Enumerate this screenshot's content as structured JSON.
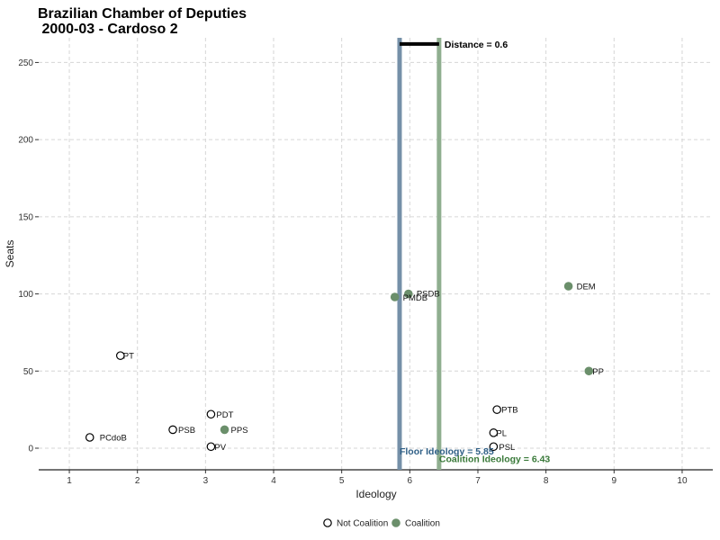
{
  "chart_data": {
    "type": "scatter",
    "title_line1": "Brazilian Chamber of Deputies",
    "title_line2": " 2000-03 - Cardoso 2",
    "xlabel": "Ideology",
    "ylabel": "Seats",
    "xlim": [
      0.55,
      10.45
    ],
    "ylim": [
      -14,
      266
    ],
    "xticks": [
      1,
      2,
      3,
      4,
      5,
      6,
      7,
      8,
      9,
      10
    ],
    "yticks": [
      0,
      50,
      100,
      150,
      200,
      250
    ],
    "grid": true,
    "colors": {
      "coalition": "#6b8f6b",
      "floor_line": "#7590a8",
      "coalition_line": "#8fae8f",
      "floor_text": "#2e5f86",
      "coalition_text": "#3a7a3a"
    },
    "points": [
      {
        "party": "PT",
        "x": 1.75,
        "y": 60,
        "coalition": false
      },
      {
        "party": "PCdoB",
        "x": 1.3,
        "y": 7,
        "coalition": false
      },
      {
        "party": "PSB",
        "x": 2.52,
        "y": 12,
        "coalition": false
      },
      {
        "party": "PDT",
        "x": 3.08,
        "y": 22,
        "coalition": false
      },
      {
        "party": "PPS",
        "x": 3.28,
        "y": 12,
        "coalition": true
      },
      {
        "party": "PV",
        "x": 3.08,
        "y": 1,
        "coalition": false
      },
      {
        "party": "PMDB",
        "x": 5.78,
        "y": 98,
        "coalition": true
      },
      {
        "party": "PSDB",
        "x": 5.98,
        "y": 100,
        "coalition": true
      },
      {
        "party": "DEM",
        "x": 8.33,
        "y": 105,
        "coalition": true
      },
      {
        "party": "PP",
        "x": 8.63,
        "y": 50,
        "coalition": true
      },
      {
        "party": "PTB",
        "x": 7.28,
        "y": 25,
        "coalition": false
      },
      {
        "party": "PL",
        "x": 7.23,
        "y": 10,
        "coalition": false
      },
      {
        "party": "PSL",
        "x": 7.23,
        "y": 1,
        "coalition": false
      }
    ],
    "floor_ideology": 5.85,
    "coalition_ideology": 6.43,
    "floor_label": "Floor Ideology = 5.85",
    "coalition_label": "Coalition Ideology = 6.43",
    "distance_label": "Distance = 0.6",
    "distance_bar_y": 262,
    "legend": [
      {
        "label": "Not Coalition",
        "coalition": false
      },
      {
        "label": "Coalition",
        "coalition": true
      }
    ],
    "legend_position": "bottom"
  }
}
